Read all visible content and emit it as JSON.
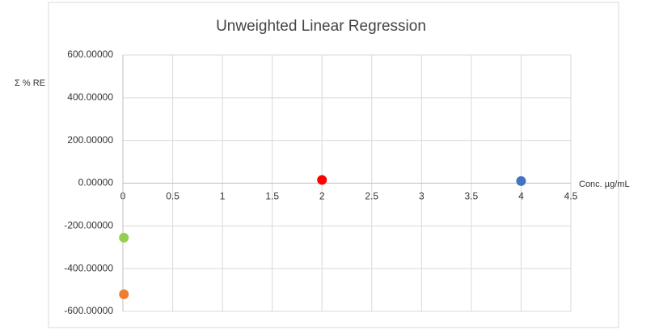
{
  "chart_data": {
    "type": "scatter",
    "title": "Unweighted Linear Regression",
    "x_label": "Conc. µg/mL",
    "y_label": "Σ % RE",
    "series": [
      {
        "color": "#92d050",
        "x": [
          0.01
        ],
        "values": [
          -255
        ]
      },
      {
        "color": "#ed7d31",
        "x": [
          0.01
        ],
        "values": [
          -520
        ]
      },
      {
        "color": "#ff0000",
        "x": [
          2
        ],
        "values": [
          15
        ]
      },
      {
        "color": "#4472c4",
        "x": [
          4
        ],
        "values": [
          10
        ]
      }
    ],
    "xlim": [
      0,
      4.5
    ],
    "xticks": [
      0,
      0.5,
      1,
      1.5,
      2,
      2.5,
      3,
      3.5,
      4,
      4.5
    ],
    "ylim": [
      -600,
      600
    ],
    "yticks": [
      {
        "value": 600,
        "label": "600.00000"
      },
      {
        "value": 400,
        "label": "400.00000"
      },
      {
        "value": 200,
        "label": "200.00000"
      },
      {
        "value": 0,
        "label": "0.00000"
      },
      {
        "value": -200,
        "label": "-200.00000"
      },
      {
        "value": -400,
        "label": "-400.00000"
      },
      {
        "value": -600,
        "label": "-600.00000"
      }
    ],
    "grid": true
  }
}
